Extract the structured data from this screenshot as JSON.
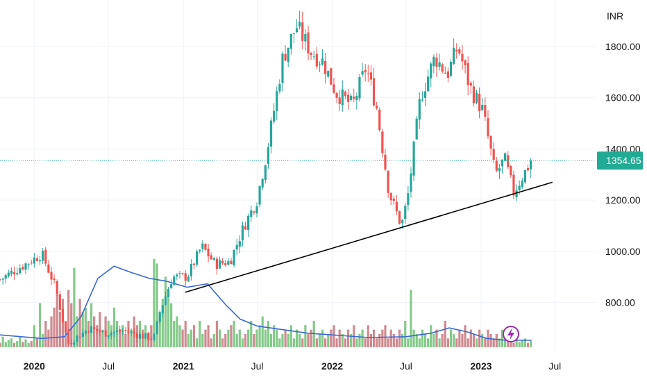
{
  "chart_data": {
    "type": "candlestick",
    "currency_label": "INR",
    "last_price_label": "1354.65",
    "last_price": 1354.65,
    "ylim": [
      620,
      1960
    ],
    "y_ticks": [
      {
        "value": 800,
        "label": "800.00"
      },
      {
        "value": 1000,
        "label": "1000.00"
      },
      {
        "value": 1200,
        "label": "1200.00"
      },
      {
        "value": 1400,
        "label": "1400.00"
      },
      {
        "value": 1600,
        "label": "1600.00"
      },
      {
        "value": 1800,
        "label": "1800.00"
      }
    ],
    "x_ticks": [
      {
        "date": "2020-01-01",
        "label": "2020",
        "bold": true
      },
      {
        "date": "2020-07-01",
        "label": "Jul",
        "bold": false
      },
      {
        "date": "2021-01-01",
        "label": "2021",
        "bold": true
      },
      {
        "date": "2021-07-01",
        "label": "Jul",
        "bold": false
      },
      {
        "date": "2022-01-01",
        "label": "2022",
        "bold": true
      },
      {
        "date": "2022-07-01",
        "label": "Jul",
        "bold": false
      },
      {
        "date": "2023-01-01",
        "label": "2023",
        "bold": true
      },
      {
        "date": "2023-07-01",
        "label": "Jul",
        "bold": false
      }
    ],
    "x_range": [
      "2019-10-09",
      "2023-10-09"
    ],
    "price_points": [
      [
        "2019-10-09",
        890
      ],
      [
        "2019-12-10",
        950
      ],
      [
        "2020-01-20",
        990
      ],
      [
        "2020-02-22",
        860
      ],
      [
        "2020-03-24",
        640
      ],
      [
        "2020-05-15",
        700
      ],
      [
        "2020-06-20",
        680
      ],
      [
        "2020-08-10",
        690
      ],
      [
        "2020-09-20",
        670
      ],
      [
        "2020-10-20",
        660
      ],
      [
        "2020-11-05",
        770
      ],
      [
        "2020-12-05",
        900
      ],
      [
        "2021-01-10",
        900
      ],
      [
        "2021-02-15",
        1020
      ],
      [
        "2021-03-20",
        950
      ],
      [
        "2021-04-25",
        960
      ],
      [
        "2021-05-30",
        1100
      ],
      [
        "2021-06-30",
        1200
      ],
      [
        "2021-07-25",
        1390
      ],
      [
        "2021-09-01",
        1750
      ],
      [
        "2021-10-05",
        1880
      ],
      [
        "2021-11-10",
        1780
      ],
      [
        "2021-12-10",
        1740
      ],
      [
        "2022-01-10",
        1620
      ],
      [
        "2022-02-20",
        1570
      ],
      [
        "2022-03-25",
        1720
      ],
      [
        "2022-04-20",
        1560
      ],
      [
        "2022-05-20",
        1230
      ],
      [
        "2022-06-20",
        1100
      ],
      [
        "2022-07-05",
        1210
      ],
      [
        "2022-08-05",
        1600
      ],
      [
        "2022-09-10",
        1760
      ],
      [
        "2022-10-10",
        1690
      ],
      [
        "2022-11-05",
        1800
      ],
      [
        "2022-12-05",
        1640
      ],
      [
        "2023-01-05",
        1550
      ],
      [
        "2023-02-05",
        1300
      ],
      [
        "2023-02-28",
        1360
      ],
      [
        "2023-03-22",
        1230
      ],
      [
        "2023-04-15",
        1300
      ],
      [
        "2023-05-05",
        1354.65
      ]
    ],
    "volume_rel": [
      0.05,
      0.12,
      0.06,
      0.08,
      0.1,
      0.05,
      0.07,
      0.12,
      0.06,
      0.09,
      0.05,
      0.07,
      0.25,
      0.1,
      0.5,
      0.15,
      0.3,
      0.2,
      0.35,
      0.45,
      0.6,
      0.4,
      0.55,
      0.3,
      0.65,
      0.5,
      0.9,
      0.35,
      0.55,
      0.4,
      0.45,
      0.3,
      0.5,
      0.35,
      0.25,
      0.4,
      0.2,
      0.35,
      0.3,
      0.25,
      0.45,
      0.3,
      0.2,
      0.25,
      0.15,
      0.3,
      0.2,
      0.35,
      0.25,
      0.3,
      0.2,
      0.25,
      0.15,
      0.25,
      1.0,
      0.95,
      0.4,
      0.55,
      0.8,
      0.6,
      0.5,
      0.3,
      0.35,
      0.25,
      0.2,
      0.3,
      0.15,
      0.2,
      0.25,
      0.1,
      0.3,
      0.15,
      0.2,
      0.25,
      0.1,
      0.15,
      0.3,
      0.2,
      0.1,
      0.15,
      0.2,
      0.25,
      0.3,
      0.15,
      0.2,
      0.1,
      0.15,
      0.2,
      0.3,
      0.15,
      0.2,
      0.25,
      0.35,
      0.2,
      0.3,
      0.15,
      0.25,
      0.2,
      0.1,
      0.15,
      0.2,
      0.15,
      0.25,
      0.1,
      0.2,
      0.15,
      0.1,
      0.25,
      0.15,
      0.2,
      0.3,
      0.1,
      0.15,
      0.2,
      0.1,
      0.15,
      0.2,
      0.25,
      0.1,
      0.2,
      0.15,
      0.1,
      0.2,
      0.15,
      0.25,
      0.1,
      0.15,
      0.2,
      0.1,
      0.25,
      0.15,
      0.2,
      0.1,
      0.15,
      0.2,
      0.25,
      0.1,
      0.2,
      0.15,
      0.1,
      0.2,
      0.15,
      0.3,
      0.1,
      0.65,
      0.2,
      0.15,
      0.1,
      0.2,
      0.15,
      0.1,
      0.25,
      0.15,
      0.2,
      0.1,
      0.15,
      0.3,
      0.1,
      0.2,
      0.15,
      0.1,
      0.2,
      0.15,
      0.25,
      0.1,
      0.2,
      0.15,
      0.1,
      0.2,
      0.15,
      0.1,
      0.2,
      0.15,
      0.1,
      0.15,
      0.1,
      0.2,
      0.15,
      0.1,
      0.08
    ],
    "volume_ma": [
      [
        "2019-10-09",
        0.14
      ],
      [
        "2020-01-20",
        0.1
      ],
      [
        "2020-03-15",
        0.12
      ],
      [
        "2020-04-25",
        0.35
      ],
      [
        "2020-06-05",
        0.78
      ],
      [
        "2020-07-15",
        0.92
      ],
      [
        "2020-08-25",
        0.85
      ],
      [
        "2020-10-10",
        0.78
      ],
      [
        "2020-11-20",
        0.75
      ],
      [
        "2021-01-10",
        0.68
      ],
      [
        "2021-03-01",
        0.72
      ],
      [
        "2021-04-15",
        0.48
      ],
      [
        "2021-05-20",
        0.32
      ],
      [
        "2021-07-01",
        0.24
      ],
      [
        "2021-09-01",
        0.2
      ],
      [
        "2021-11-01",
        0.16
      ],
      [
        "2022-01-01",
        0.14
      ],
      [
        "2022-04-01",
        0.11
      ],
      [
        "2022-07-01",
        0.12
      ],
      [
        "2022-09-01",
        0.16
      ],
      [
        "2022-10-15",
        0.22
      ],
      [
        "2022-12-01",
        0.17
      ],
      [
        "2023-01-15",
        0.1
      ],
      [
        "2023-03-01",
        0.08
      ],
      [
        "2023-05-05",
        0.08
      ]
    ],
    "trendline": [
      [
        "2021-01-05",
        840
      ],
      [
        "2023-06-25",
        1270
      ]
    ],
    "colors": {
      "up": "#26a69a",
      "down": "#ef5350",
      "vol_up": "#84c98a",
      "vol_down": "#cf8a8f",
      "volume_ma": "#3a68d6",
      "grid": "#f0f3fa",
      "trendline": "#000000",
      "price_line": "#22ab94",
      "badge_bg": "#22ab94",
      "flash": "#9c27b0"
    },
    "grid": true,
    "icons": [
      "flash-icon"
    ]
  }
}
